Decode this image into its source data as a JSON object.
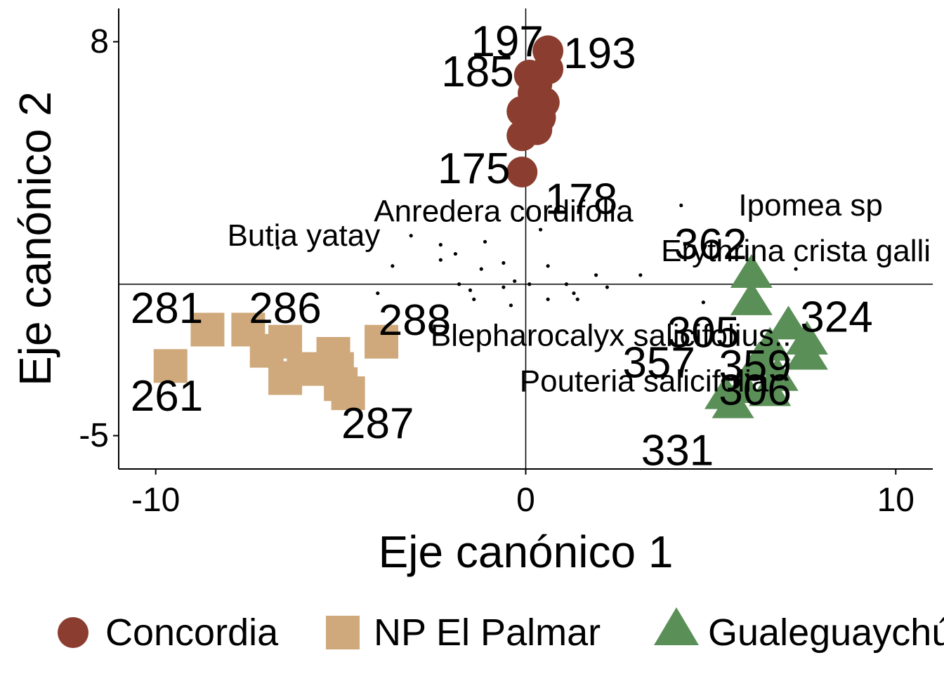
{
  "chart_data": {
    "type": "scatter",
    "xlabel": "Eje canónico 1",
    "ylabel": "Eje canónico 2",
    "xlim": [
      -11.0,
      11.0
    ],
    "ylim": [
      -6.1,
      9.1
    ],
    "x_ticks": [
      -10,
      0,
      10
    ],
    "x_tick_labels": [
      "-10",
      "0",
      "10"
    ],
    "y_ticks": [
      -5,
      8
    ],
    "y_tick_labels": [
      "-5",
      "8"
    ],
    "reference_lines": {
      "x": 0,
      "y": 0
    },
    "grid": false,
    "legend_position": "bottom",
    "series": [
      {
        "name": "Concordia",
        "color": "#8B3E2F",
        "marker": "circle",
        "points": [
          {
            "x": 0.6,
            "y": 7.7
          },
          {
            "x": 0.6,
            "y": 7.1
          },
          {
            "x": 0.1,
            "y": 6.9
          },
          {
            "x": 0.3,
            "y": 6.6
          },
          {
            "x": 0.2,
            "y": 6.3
          },
          {
            "x": 0.5,
            "y": 6.0
          },
          {
            "x": -0.1,
            "y": 5.7
          },
          {
            "x": 0.4,
            "y": 5.5
          },
          {
            "x": 0.3,
            "y": 5.1
          },
          {
            "x": -0.1,
            "y": 4.9
          },
          {
            "x": -0.1,
            "y": 3.7
          }
        ],
        "labels": [
          {
            "text": "197",
            "x": -0.5,
            "y": 8.0
          },
          {
            "text": "193",
            "x": 2.0,
            "y": 7.6
          },
          {
            "text": "185",
            "x": -1.3,
            "y": 7.0
          },
          {
            "text": "175",
            "x": -1.4,
            "y": 3.8
          },
          {
            "text": "178",
            "x": 1.5,
            "y": 2.8
          }
        ]
      },
      {
        "name": "NP El Palmar",
        "color": "#CFA97B",
        "marker": "square",
        "points": [
          {
            "x": -8.6,
            "y": -1.5
          },
          {
            "x": -7.5,
            "y": -1.5
          },
          {
            "x": -6.5,
            "y": -1.9
          },
          {
            "x": -7.0,
            "y": -2.2
          },
          {
            "x": -5.2,
            "y": -2.3
          },
          {
            "x": -5.1,
            "y": -2.8
          },
          {
            "x": -6.0,
            "y": -2.8
          },
          {
            "x": -6.5,
            "y": -3.1
          },
          {
            "x": -5.0,
            "y": -3.3
          },
          {
            "x": -4.8,
            "y": -3.6
          },
          {
            "x": -3.9,
            "y": -1.9
          },
          {
            "x": -9.6,
            "y": -2.7
          }
        ],
        "labels": [
          {
            "text": "281",
            "x": -9.7,
            "y": -0.8
          },
          {
            "text": "286",
            "x": -6.5,
            "y": -0.8
          },
          {
            "text": "288",
            "x": -3.0,
            "y": -1.2
          },
          {
            "text": "261",
            "x": -9.7,
            "y": -3.7
          },
          {
            "text": "287",
            "x": -4.0,
            "y": -4.6
          }
        ]
      },
      {
        "name": "Gualeguaychú",
        "color": "#5A8F57",
        "marker": "triangle",
        "points": [
          {
            "x": 6.1,
            "y": 0.3
          },
          {
            "x": 6.1,
            "y": -0.6
          },
          {
            "x": 7.1,
            "y": -1.4
          },
          {
            "x": 7.6,
            "y": -1.9
          },
          {
            "x": 6.6,
            "y": -2.1
          },
          {
            "x": 7.6,
            "y": -2.4
          },
          {
            "x": 6.3,
            "y": -2.6
          },
          {
            "x": 6.8,
            "y": -3.1
          },
          {
            "x": 5.9,
            "y": -3.5
          },
          {
            "x": 5.4,
            "y": -3.7
          },
          {
            "x": 6.6,
            "y": -3.6
          },
          {
            "x": 5.6,
            "y": -4.0
          }
        ],
        "labels": [
          {
            "text": "362",
            "x": 5.0,
            "y": 1.3
          },
          {
            "text": "324",
            "x": 8.4,
            "y": -1.1
          },
          {
            "text": "305",
            "x": 4.8,
            "y": -1.6
          },
          {
            "text": "357",
            "x": 3.6,
            "y": -2.6
          },
          {
            "text": "359",
            "x": 6.2,
            "y": -2.7
          },
          {
            "text": "306",
            "x": 6.2,
            "y": -3.5
          },
          {
            "text": "331",
            "x": 4.1,
            "y": -5.5
          }
        ]
      }
    ],
    "species": {
      "points": [
        {
          "x": -6.7,
          "y": 1.2
        },
        {
          "x": -3.1,
          "y": 1.6
        },
        {
          "x": -2.3,
          "y": 1.3
        },
        {
          "x": -1.9,
          "y": 1.0
        },
        {
          "x": -1.1,
          "y": 1.4
        },
        {
          "x": -3.6,
          "y": 0.6
        },
        {
          "x": -2.3,
          "y": 0.8
        },
        {
          "x": -1.2,
          "y": 0.5
        },
        {
          "x": -0.6,
          "y": 0.7
        },
        {
          "x": 0.6,
          "y": 0.6
        },
        {
          "x": 1.9,
          "y": 0.3
        },
        {
          "x": 3.1,
          "y": 0.3
        },
        {
          "x": 7.3,
          "y": 0.5
        },
        {
          "x": -1.8,
          "y": 0.0
        },
        {
          "x": -1.5,
          "y": -0.2
        },
        {
          "x": -0.3,
          "y": 0.1
        },
        {
          "x": 0.1,
          "y": 0.0
        },
        {
          "x": 1.1,
          "y": 0.0
        },
        {
          "x": 1.3,
          "y": -0.3
        },
        {
          "x": 2.2,
          "y": -0.1
        },
        {
          "x": 0.6,
          "y": -0.5
        },
        {
          "x": 1.4,
          "y": -0.5
        },
        {
          "x": -1.4,
          "y": -0.5
        },
        {
          "x": -4.0,
          "y": -0.3
        },
        {
          "x": -0.4,
          "y": -0.7
        },
        {
          "x": 4.8,
          "y": -0.6
        },
        {
          "x": -0.6,
          "y": -0.1
        },
        {
          "x": 0.4,
          "y": 1.8
        },
        {
          "x": 4.2,
          "y": 2.6
        }
      ],
      "labels": [
        {
          "text": "Butia yatay",
          "x": -6.0,
          "y": 1.6
        },
        {
          "text": "Anredera cordifolia",
          "x": -0.6,
          "y": 2.4
        },
        {
          "text": "Ipomea sp",
          "x": 7.7,
          "y": 2.6
        },
        {
          "text": "Erythrina crista galli",
          "x": 7.3,
          "y": 1.1
        },
        {
          "text": "Blepharocalyx salicifolius..",
          "x": 2.3,
          "y": -1.7
        },
        {
          "text": "Pouteria salicifolia",
          "x": 3.2,
          "y": -3.2
        }
      ]
    }
  }
}
